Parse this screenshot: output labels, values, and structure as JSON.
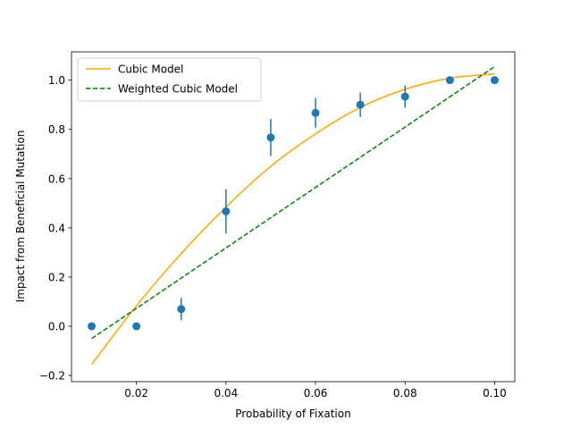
{
  "chart_data": {
    "type": "scatter",
    "xlabel": "Probability of Fixation",
    "ylabel": "Impact from Beneficial Mutation",
    "xlim": [
      0.0055,
      0.1045
    ],
    "ylim": [
      -0.225,
      1.115
    ],
    "x_ticks": [
      0.02,
      0.04,
      0.06,
      0.08,
      0.1
    ],
    "x_tick_labels": [
      "0.02",
      "0.04",
      "0.06",
      "0.08",
      "0.10"
    ],
    "y_ticks": [
      -0.2,
      0.0,
      0.2,
      0.4,
      0.6,
      0.8,
      1.0
    ],
    "y_tick_labels": [
      "−0.2",
      "0.0",
      "0.2",
      "0.4",
      "0.6",
      "0.8",
      "1.0"
    ],
    "grid": false,
    "legend_position": "top-left",
    "series": [
      {
        "name": "Cubic Model",
        "kind": "line",
        "style": "solid",
        "color": "#ffa500",
        "x": [
          0.01,
          0.02,
          0.03,
          0.04,
          0.05,
          0.06,
          0.07,
          0.08,
          0.09,
          0.1
        ],
        "y": [
          -0.155,
          0.083,
          0.295,
          0.484,
          0.65,
          0.782,
          0.889,
          0.963,
          1.008,
          1.025
        ]
      },
      {
        "name": "Weighted Cubic Model",
        "kind": "line",
        "style": "dashed",
        "color": "#008000",
        "x": [
          0.01,
          0.1
        ],
        "y": [
          -0.05,
          1.055
        ]
      },
      {
        "kind": "points",
        "color": "#1f77b4",
        "x": [
          0.01,
          0.02,
          0.03,
          0.04,
          0.05,
          0.06,
          0.07,
          0.08,
          0.09,
          0.1
        ],
        "y": [
          0.0,
          0.0,
          0.07,
          0.467,
          0.767,
          0.867,
          0.9,
          0.933,
          1.0,
          1.0
        ],
        "yerr": [
          0.0,
          0.0,
          0.045,
          0.09,
          0.075,
          0.06,
          0.05,
          0.045,
          0.0,
          0.0
        ]
      }
    ]
  }
}
